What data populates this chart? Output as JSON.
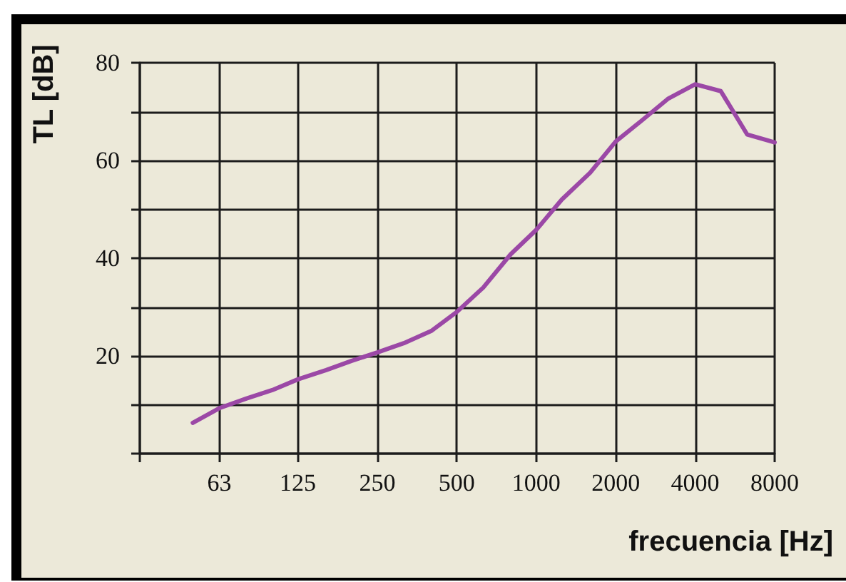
{
  "chart_data": {
    "type": "line",
    "xlabel": "frecuencia [Hz]",
    "ylabel": "TL [dB]",
    "x": [
      50,
      63,
      80,
      100,
      125,
      160,
      200,
      250,
      315,
      400,
      500,
      630,
      800,
      1000,
      1250,
      1600,
      2000,
      2500,
      3150,
      4000,
      5000,
      6300,
      8000
    ],
    "values": [
      6.3,
      9.3,
      11.3,
      13,
      15.2,
      17.1,
      19,
      20.7,
      22.6,
      25.1,
      29,
      34,
      40.8,
      45.8,
      52,
      57.5,
      63.9,
      68.1,
      72.6,
      75.6,
      74.2,
      65.3,
      63.7
    ],
    "color": "#9b48a6",
    "log": "x",
    "xlim": [
      31.5,
      8000
    ],
    "xticks": [
      {
        "value": 31.5,
        "label": null
      },
      63,
      125,
      250,
      500,
      1000,
      2000,
      4000,
      8000
    ],
    "ylim": [
      0,
      80
    ],
    "yticks": [
      {
        "value": 0,
        "label": null
      },
      {
        "value": 10,
        "label": null
      },
      20,
      {
        "value": 30,
        "label": null
      },
      40,
      {
        "value": 50,
        "label": null
      },
      60,
      {
        "value": 70,
        "label": null
      },
      80
    ],
    "grid": true
  }
}
